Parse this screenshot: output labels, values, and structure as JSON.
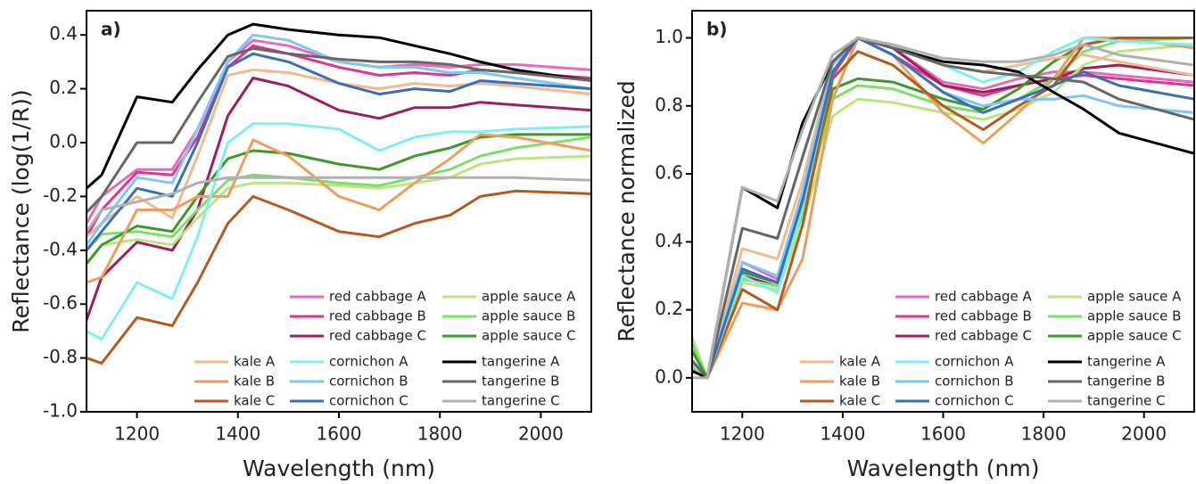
{
  "chart_data": [
    {
      "type": "line",
      "label": "a)",
      "xlabel": "Wavelength (nm)",
      "ylabel": "Reflectance (log(1/R))",
      "x": [
        1100,
        1130,
        1200,
        1270,
        1320,
        1380,
        1430,
        1500,
        1600,
        1680,
        1750,
        1820,
        1880,
        1950,
        2100
      ],
      "xlim": [
        1100,
        2100
      ],
      "xticks": [
        1200,
        1400,
        1600,
        1800,
        2000
      ],
      "ylim": [
        -1.0,
        0.49
      ],
      "yticks": [
        {
          "value": -1.0,
          "label": "-1.0"
        },
        -0.8,
        -0.6,
        -0.4,
        -0.2,
        {
          "value": 0.0,
          "label": "0.0"
        },
        0.2,
        0.4
      ],
      "series": [
        {
          "name": "red cabbage A",
          "color": "#e86ab8",
          "values": [
            -0.3,
            -0.2,
            -0.1,
            -0.1,
            0.05,
            0.3,
            0.38,
            0.36,
            0.3,
            0.28,
            0.29,
            0.28,
            0.29,
            0.29,
            0.27
          ]
        },
        {
          "name": "red cabbage B",
          "color": "#de3590",
          "values": [
            -0.35,
            -0.25,
            -0.11,
            -0.12,
            0.02,
            0.28,
            0.36,
            0.33,
            0.28,
            0.25,
            0.26,
            0.25,
            0.27,
            0.26,
            0.24
          ]
        },
        {
          "name": "red cabbage C",
          "color": "#9c1e5e",
          "values": [
            -0.66,
            -0.5,
            -0.37,
            -0.4,
            -0.25,
            0.1,
            0.24,
            0.21,
            0.12,
            0.09,
            0.13,
            0.13,
            0.15,
            0.14,
            0.12
          ]
        },
        {
          "name": "apple sauce A",
          "color": "#bde47f",
          "values": [
            -0.45,
            -0.38,
            -0.36,
            -0.38,
            -0.28,
            -0.17,
            -0.15,
            -0.15,
            -0.16,
            -0.17,
            -0.15,
            -0.13,
            -0.08,
            -0.06,
            -0.05
          ]
        },
        {
          "name": "apple sauce B",
          "color": "#7ddf6a",
          "values": [
            -0.4,
            -0.34,
            -0.33,
            -0.35,
            -0.25,
            -0.14,
            -0.12,
            -0.13,
            -0.15,
            -0.16,
            -0.13,
            -0.1,
            -0.05,
            -0.02,
            0.02
          ]
        },
        {
          "name": "apple sauce C",
          "color": "#3c9a2a",
          "values": [
            -0.45,
            -0.38,
            -0.31,
            -0.33,
            -0.2,
            -0.06,
            -0.03,
            -0.04,
            -0.08,
            -0.1,
            -0.05,
            -0.02,
            0.02,
            0.03,
            0.03
          ]
        },
        {
          "name": "kale A",
          "color": "#f3b98f",
          "values": [
            -0.35,
            -0.3,
            -0.2,
            -0.28,
            -0.05,
            0.25,
            0.27,
            0.26,
            0.22,
            0.2,
            0.22,
            0.21,
            0.22,
            0.21,
            0.18
          ]
        },
        {
          "name": "kale B",
          "color": "#ee9e5c",
          "values": [
            -0.52,
            -0.5,
            -0.25,
            -0.25,
            -0.2,
            -0.2,
            0.01,
            -0.05,
            -0.2,
            -0.25,
            -0.15,
            -0.06,
            0.03,
            0.02,
            -0.03
          ]
        },
        {
          "name": "kale C",
          "color": "#b5591f",
          "values": [
            -0.8,
            -0.82,
            -0.65,
            -0.68,
            -0.52,
            -0.3,
            -0.2,
            -0.25,
            -0.33,
            -0.35,
            -0.3,
            -0.27,
            -0.2,
            -0.18,
            -0.19
          ]
        },
        {
          "name": "cornichon A",
          "color": "#80eff0",
          "values": [
            -0.7,
            -0.73,
            -0.52,
            -0.58,
            -0.35,
            0.0,
            0.07,
            0.07,
            0.05,
            -0.03,
            0.02,
            0.04,
            0.04,
            0.05,
            0.06
          ]
        },
        {
          "name": "cornichon B",
          "color": "#80c6f2",
          "values": [
            -0.38,
            -0.3,
            -0.13,
            -0.15,
            0.05,
            0.3,
            0.4,
            0.38,
            0.3,
            0.28,
            0.28,
            0.26,
            0.26,
            0.24,
            0.2
          ]
        },
        {
          "name": "cornichon C",
          "color": "#3a6fb5",
          "values": [
            -0.4,
            -0.33,
            -0.17,
            -0.2,
            0.0,
            0.28,
            0.33,
            0.3,
            0.22,
            0.18,
            0.2,
            0.19,
            0.23,
            0.22,
            0.2
          ]
        },
        {
          "name": "tangerine A",
          "color": "#000000",
          "values": [
            -0.17,
            -0.12,
            0.17,
            0.15,
            0.27,
            0.4,
            0.44,
            0.42,
            0.4,
            0.39,
            0.36,
            0.33,
            0.3,
            0.27,
            0.23
          ]
        },
        {
          "name": "tangerine B",
          "color": "#666666",
          "values": [
            -0.26,
            -0.2,
            0.0,
            0.0,
            0.15,
            0.32,
            0.35,
            0.33,
            0.31,
            0.3,
            0.3,
            0.29,
            0.27,
            0.26,
            0.23
          ]
        },
        {
          "name": "tangerine C",
          "color": "#b0b0b0",
          "values": [
            -0.33,
            -0.25,
            -0.22,
            -0.19,
            -0.15,
            -0.13,
            -0.13,
            -0.13,
            -0.13,
            -0.13,
            -0.13,
            -0.13,
            -0.13,
            -0.13,
            -0.14
          ]
        }
      ]
    },
    {
      "type": "line",
      "label": "b)",
      "xlabel": "Wavelength (nm)",
      "ylabel": "Reflectance normalized",
      "x": [
        1100,
        1130,
        1200,
        1270,
        1320,
        1380,
        1430,
        1500,
        1600,
        1680,
        1750,
        1820,
        1880,
        1950,
        2100
      ],
      "xlim": [
        1100,
        2100
      ],
      "xticks": [
        1200,
        1400,
        1600,
        1800,
        2000
      ],
      "ylim": [
        -0.1,
        1.08
      ],
      "yticks": [
        {
          "value": 0.0,
          "label": "0.0"
        },
        0.2,
        0.4,
        0.6,
        0.8,
        {
          "value": 1.0,
          "label": "1.0"
        }
      ],
      "series": [
        {
          "name": "red cabbage A",
          "color": "#e86ab8",
          "values": [
            0.05,
            0.0,
            0.34,
            0.29,
            0.55,
            0.9,
            1.0,
            0.97,
            0.87,
            0.85,
            0.88,
            0.9,
            0.9,
            0.89,
            0.87
          ]
        },
        {
          "name": "red cabbage B",
          "color": "#de3590",
          "values": [
            0.05,
            0.0,
            0.32,
            0.28,
            0.53,
            0.89,
            1.0,
            0.95,
            0.86,
            0.83,
            0.86,
            0.88,
            0.89,
            0.88,
            0.86
          ]
        },
        {
          "name": "red cabbage C",
          "color": "#9c1e5e",
          "values": [
            0.05,
            0.0,
            0.3,
            0.27,
            0.5,
            0.82,
            1.0,
            0.97,
            0.86,
            0.84,
            0.86,
            0.88,
            0.91,
            0.92,
            0.89
          ]
        },
        {
          "name": "apple sauce A",
          "color": "#bde47f",
          "values": [
            0.12,
            0.0,
            0.28,
            0.26,
            0.45,
            0.77,
            0.82,
            0.81,
            0.78,
            0.76,
            0.79,
            0.84,
            0.92,
            0.96,
            0.98
          ]
        },
        {
          "name": "apple sauce B",
          "color": "#7ddf6a",
          "values": [
            0.1,
            0.0,
            0.29,
            0.27,
            0.48,
            0.82,
            0.86,
            0.85,
            0.8,
            0.78,
            0.82,
            0.88,
            0.96,
            0.99,
            1.0
          ]
        },
        {
          "name": "apple sauce C",
          "color": "#3c9a2a",
          "values": [
            0.08,
            0.0,
            0.31,
            0.28,
            0.5,
            0.85,
            0.88,
            0.87,
            0.82,
            0.79,
            0.85,
            0.93,
            0.98,
            1.0,
            1.0
          ]
        },
        {
          "name": "kale A",
          "color": "#f3b98f",
          "values": [
            0.05,
            0.0,
            0.38,
            0.35,
            0.58,
            0.93,
            1.0,
            0.98,
            0.92,
            0.9,
            0.92,
            0.94,
            0.95,
            0.93,
            0.89
          ]
        },
        {
          "name": "kale B",
          "color": "#ee9e5c",
          "values": [
            0.03,
            0.0,
            0.22,
            0.2,
            0.35,
            0.82,
            1.0,
            0.95,
            0.78,
            0.69,
            0.78,
            0.88,
            1.0,
            1.0,
            0.97
          ]
        },
        {
          "name": "kale C",
          "color": "#b5591f",
          "values": [
            0.05,
            0.0,
            0.26,
            0.2,
            0.45,
            0.88,
            0.96,
            0.92,
            0.8,
            0.73,
            0.8,
            0.86,
            0.98,
            1.0,
            1.0
          ]
        },
        {
          "name": "cornichon A",
          "color": "#80eff0",
          "values": [
            0.04,
            0.0,
            0.3,
            0.25,
            0.5,
            0.9,
            1.0,
            0.98,
            0.92,
            0.87,
            0.9,
            0.96,
            1.0,
            0.99,
            0.98
          ]
        },
        {
          "name": "cornichon B",
          "color": "#80c6f2",
          "values": [
            0.05,
            0.0,
            0.34,
            0.3,
            0.55,
            0.92,
            1.0,
            0.95,
            0.84,
            0.8,
            0.82,
            0.82,
            0.83,
            0.8,
            0.78
          ]
        },
        {
          "name": "cornichon C",
          "color": "#3a6fb5",
          "values": [
            0.05,
            0.0,
            0.32,
            0.28,
            0.52,
            0.9,
            1.0,
            0.95,
            0.84,
            0.78,
            0.82,
            0.86,
            0.9,
            0.86,
            0.82
          ]
        },
        {
          "name": "tangerine A",
          "color": "#000000",
          "values": [
            0.02,
            0.0,
            0.56,
            0.5,
            0.75,
            0.93,
            1.0,
            0.97,
            0.93,
            0.92,
            0.9,
            0.84,
            0.79,
            0.72,
            0.66
          ]
        },
        {
          "name": "tangerine B",
          "color": "#666666",
          "values": [
            0.05,
            0.0,
            0.44,
            0.41,
            0.65,
            0.93,
            1.0,
            0.97,
            0.92,
            0.9,
            0.89,
            0.88,
            0.87,
            0.82,
            0.76
          ]
        },
        {
          "name": "tangerine C",
          "color": "#b0b0b0",
          "values": [
            0.0,
            0.0,
            0.56,
            0.52,
            0.73,
            0.95,
            1.0,
            0.98,
            0.94,
            0.93,
            0.93,
            0.95,
            0.98,
            0.95,
            0.92
          ]
        }
      ]
    }
  ]
}
